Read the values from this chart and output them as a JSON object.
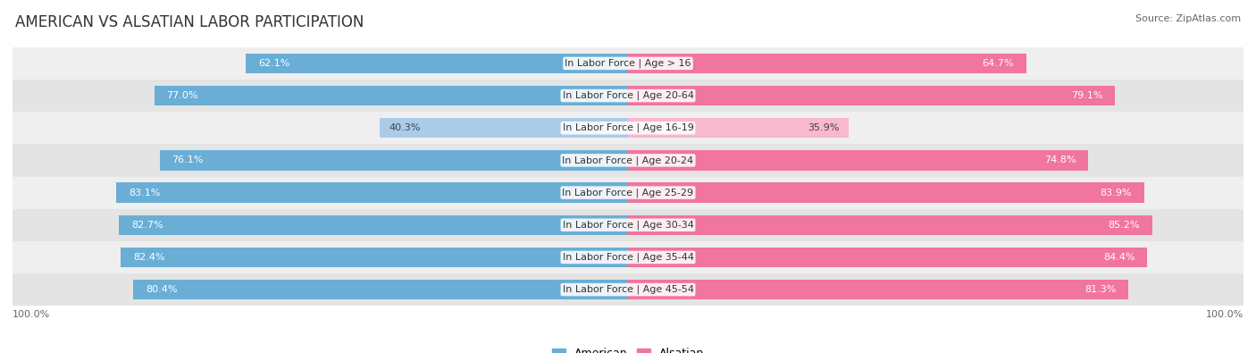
{
  "title": "AMERICAN VS ALSATIAN LABOR PARTICIPATION",
  "source": "Source: ZipAtlas.com",
  "categories": [
    "In Labor Force | Age > 16",
    "In Labor Force | Age 20-64",
    "In Labor Force | Age 16-19",
    "In Labor Force | Age 20-24",
    "In Labor Force | Age 25-29",
    "In Labor Force | Age 30-34",
    "In Labor Force | Age 35-44",
    "In Labor Force | Age 45-54"
  ],
  "american_values": [
    62.1,
    77.0,
    40.3,
    76.1,
    83.1,
    82.7,
    82.4,
    80.4
  ],
  "alsatian_values": [
    64.7,
    79.1,
    35.9,
    74.8,
    83.9,
    85.2,
    84.4,
    81.3
  ],
  "american_color": "#6aaed6",
  "american_color_light": "#aacce8",
  "alsatian_color": "#f075a0",
  "alsatian_color_light": "#f8b8d0",
  "row_bg_colors": [
    "#efefef",
    "#e4e4e4"
  ],
  "max_value": 100.0,
  "bar_height": 0.62,
  "legend_american": "American",
  "legend_alsatian": "Alsatian",
  "title_fontsize": 12,
  "label_fontsize": 8,
  "value_fontsize": 8,
  "axis_label_fontsize": 8
}
